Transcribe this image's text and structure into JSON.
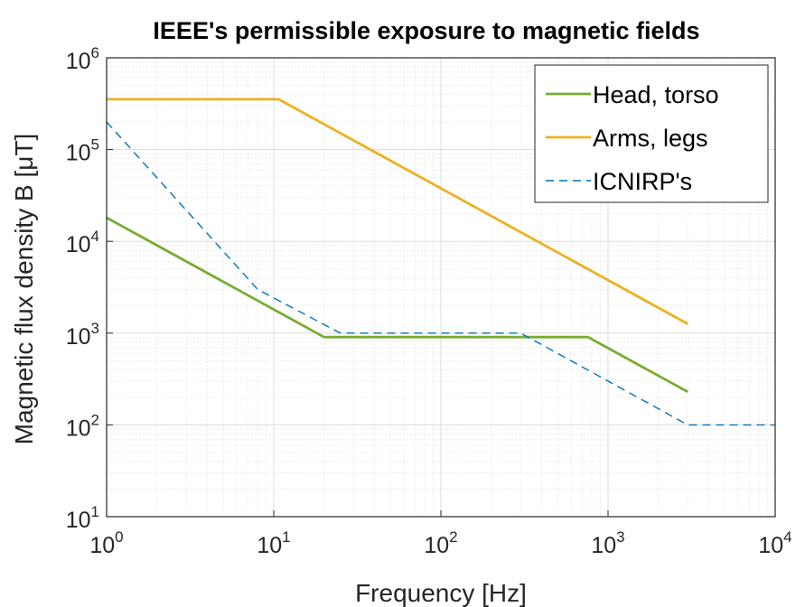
{
  "chart_data": {
    "type": "line",
    "title": "IEEE's permissible exposure to magnetic fields",
    "xlabel": "Frequency [Hz]",
    "ylabel": "Magnetic flux density B [μT]",
    "xscale": "log",
    "yscale": "log",
    "xlim": [
      1,
      10000
    ],
    "ylim": [
      10,
      1000000
    ],
    "grid": true,
    "minor_grid": true,
    "legend_position": "top-right",
    "x_ticks": [
      {
        "base": "10",
        "exp": "0",
        "value": 1
      },
      {
        "base": "10",
        "exp": "1",
        "value": 10
      },
      {
        "base": "10",
        "exp": "2",
        "value": 100
      },
      {
        "base": "10",
        "exp": "3",
        "value": 1000
      },
      {
        "base": "10",
        "exp": "4",
        "value": 10000
      }
    ],
    "y_ticks": [
      {
        "base": "10",
        "exp": "1",
        "value": 10
      },
      {
        "base": "10",
        "exp": "2",
        "value": 100
      },
      {
        "base": "10",
        "exp": "3",
        "value": 1000
      },
      {
        "base": "10",
        "exp": "4",
        "value": 10000
      },
      {
        "base": "10",
        "exp": "5",
        "value": 100000
      },
      {
        "base": "10",
        "exp": "6",
        "value": 1000000
      }
    ],
    "series": [
      {
        "name": "Head, torso",
        "color": "#77ac30",
        "style": "solid",
        "x": [
          1,
          20,
          759,
          3000
        ],
        "y": [
          18100,
          905,
          905,
          229
        ]
      },
      {
        "name": "Arms, legs",
        "color": "#edb120",
        "style": "solid",
        "x": [
          1,
          10.7,
          3000
        ],
        "y": [
          353000,
          353000,
          1260
        ]
      },
      {
        "name": "ICNIRP's",
        "color": "#0072bd",
        "style": "dashed",
        "x": [
          1,
          8,
          25,
          300,
          3000,
          10000
        ],
        "y": [
          200000,
          3000,
          1000,
          1000,
          100,
          100
        ]
      }
    ]
  }
}
